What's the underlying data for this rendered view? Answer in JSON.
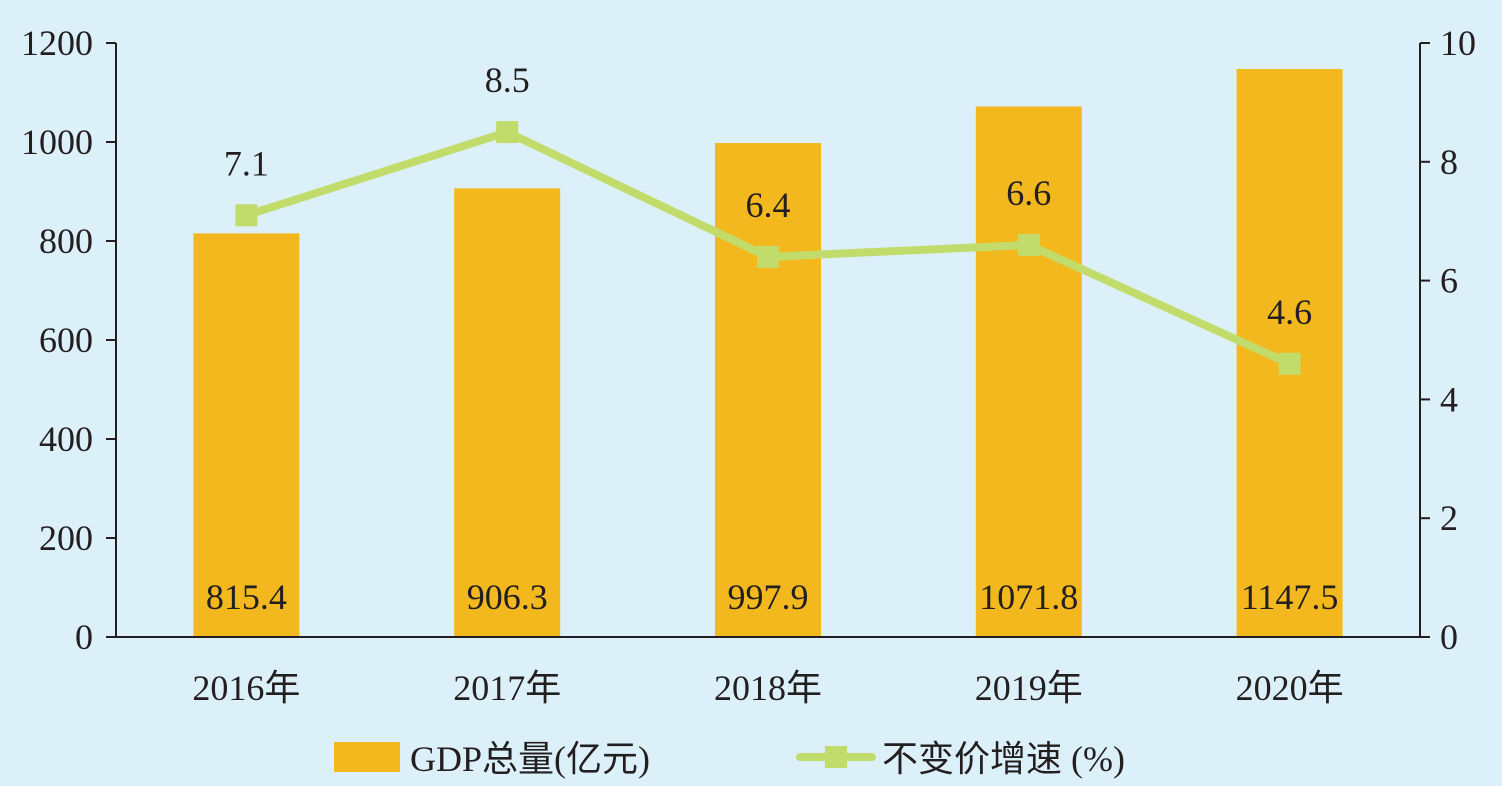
{
  "chart_data": {
    "type": "bar",
    "categories": [
      "2016年",
      "2017年",
      "2018年",
      "2019年",
      "2020年"
    ],
    "series": [
      {
        "name": "GDP总量(亿元)",
        "type": "bar",
        "axis": "left",
        "color": "#f2b81e",
        "values": [
          815.4,
          906.3,
          997.9,
          1071.8,
          1147.5
        ],
        "labels": [
          "815.4",
          "906.3",
          "997.9",
          "1071.8",
          "1147.5"
        ]
      },
      {
        "name": "不变价增速 (%)",
        "type": "line",
        "axis": "right",
        "color": "#c2dc6c",
        "values": [
          7.1,
          8.5,
          6.4,
          6.6,
          4.6
        ],
        "labels": [
          "7.1",
          "8.5",
          "6.4",
          "6.6",
          "4.6"
        ]
      }
    ],
    "left_axis": {
      "range": [
        0,
        1200
      ],
      "ticks": [
        "0",
        "200",
        "400",
        "600",
        "800",
        "1000",
        "1200"
      ]
    },
    "right_axis": {
      "range": [
        0,
        10
      ],
      "ticks": [
        "0",
        "2",
        "4",
        "6",
        "8",
        "10"
      ]
    },
    "grid": false,
    "legend_position": "bottom"
  }
}
